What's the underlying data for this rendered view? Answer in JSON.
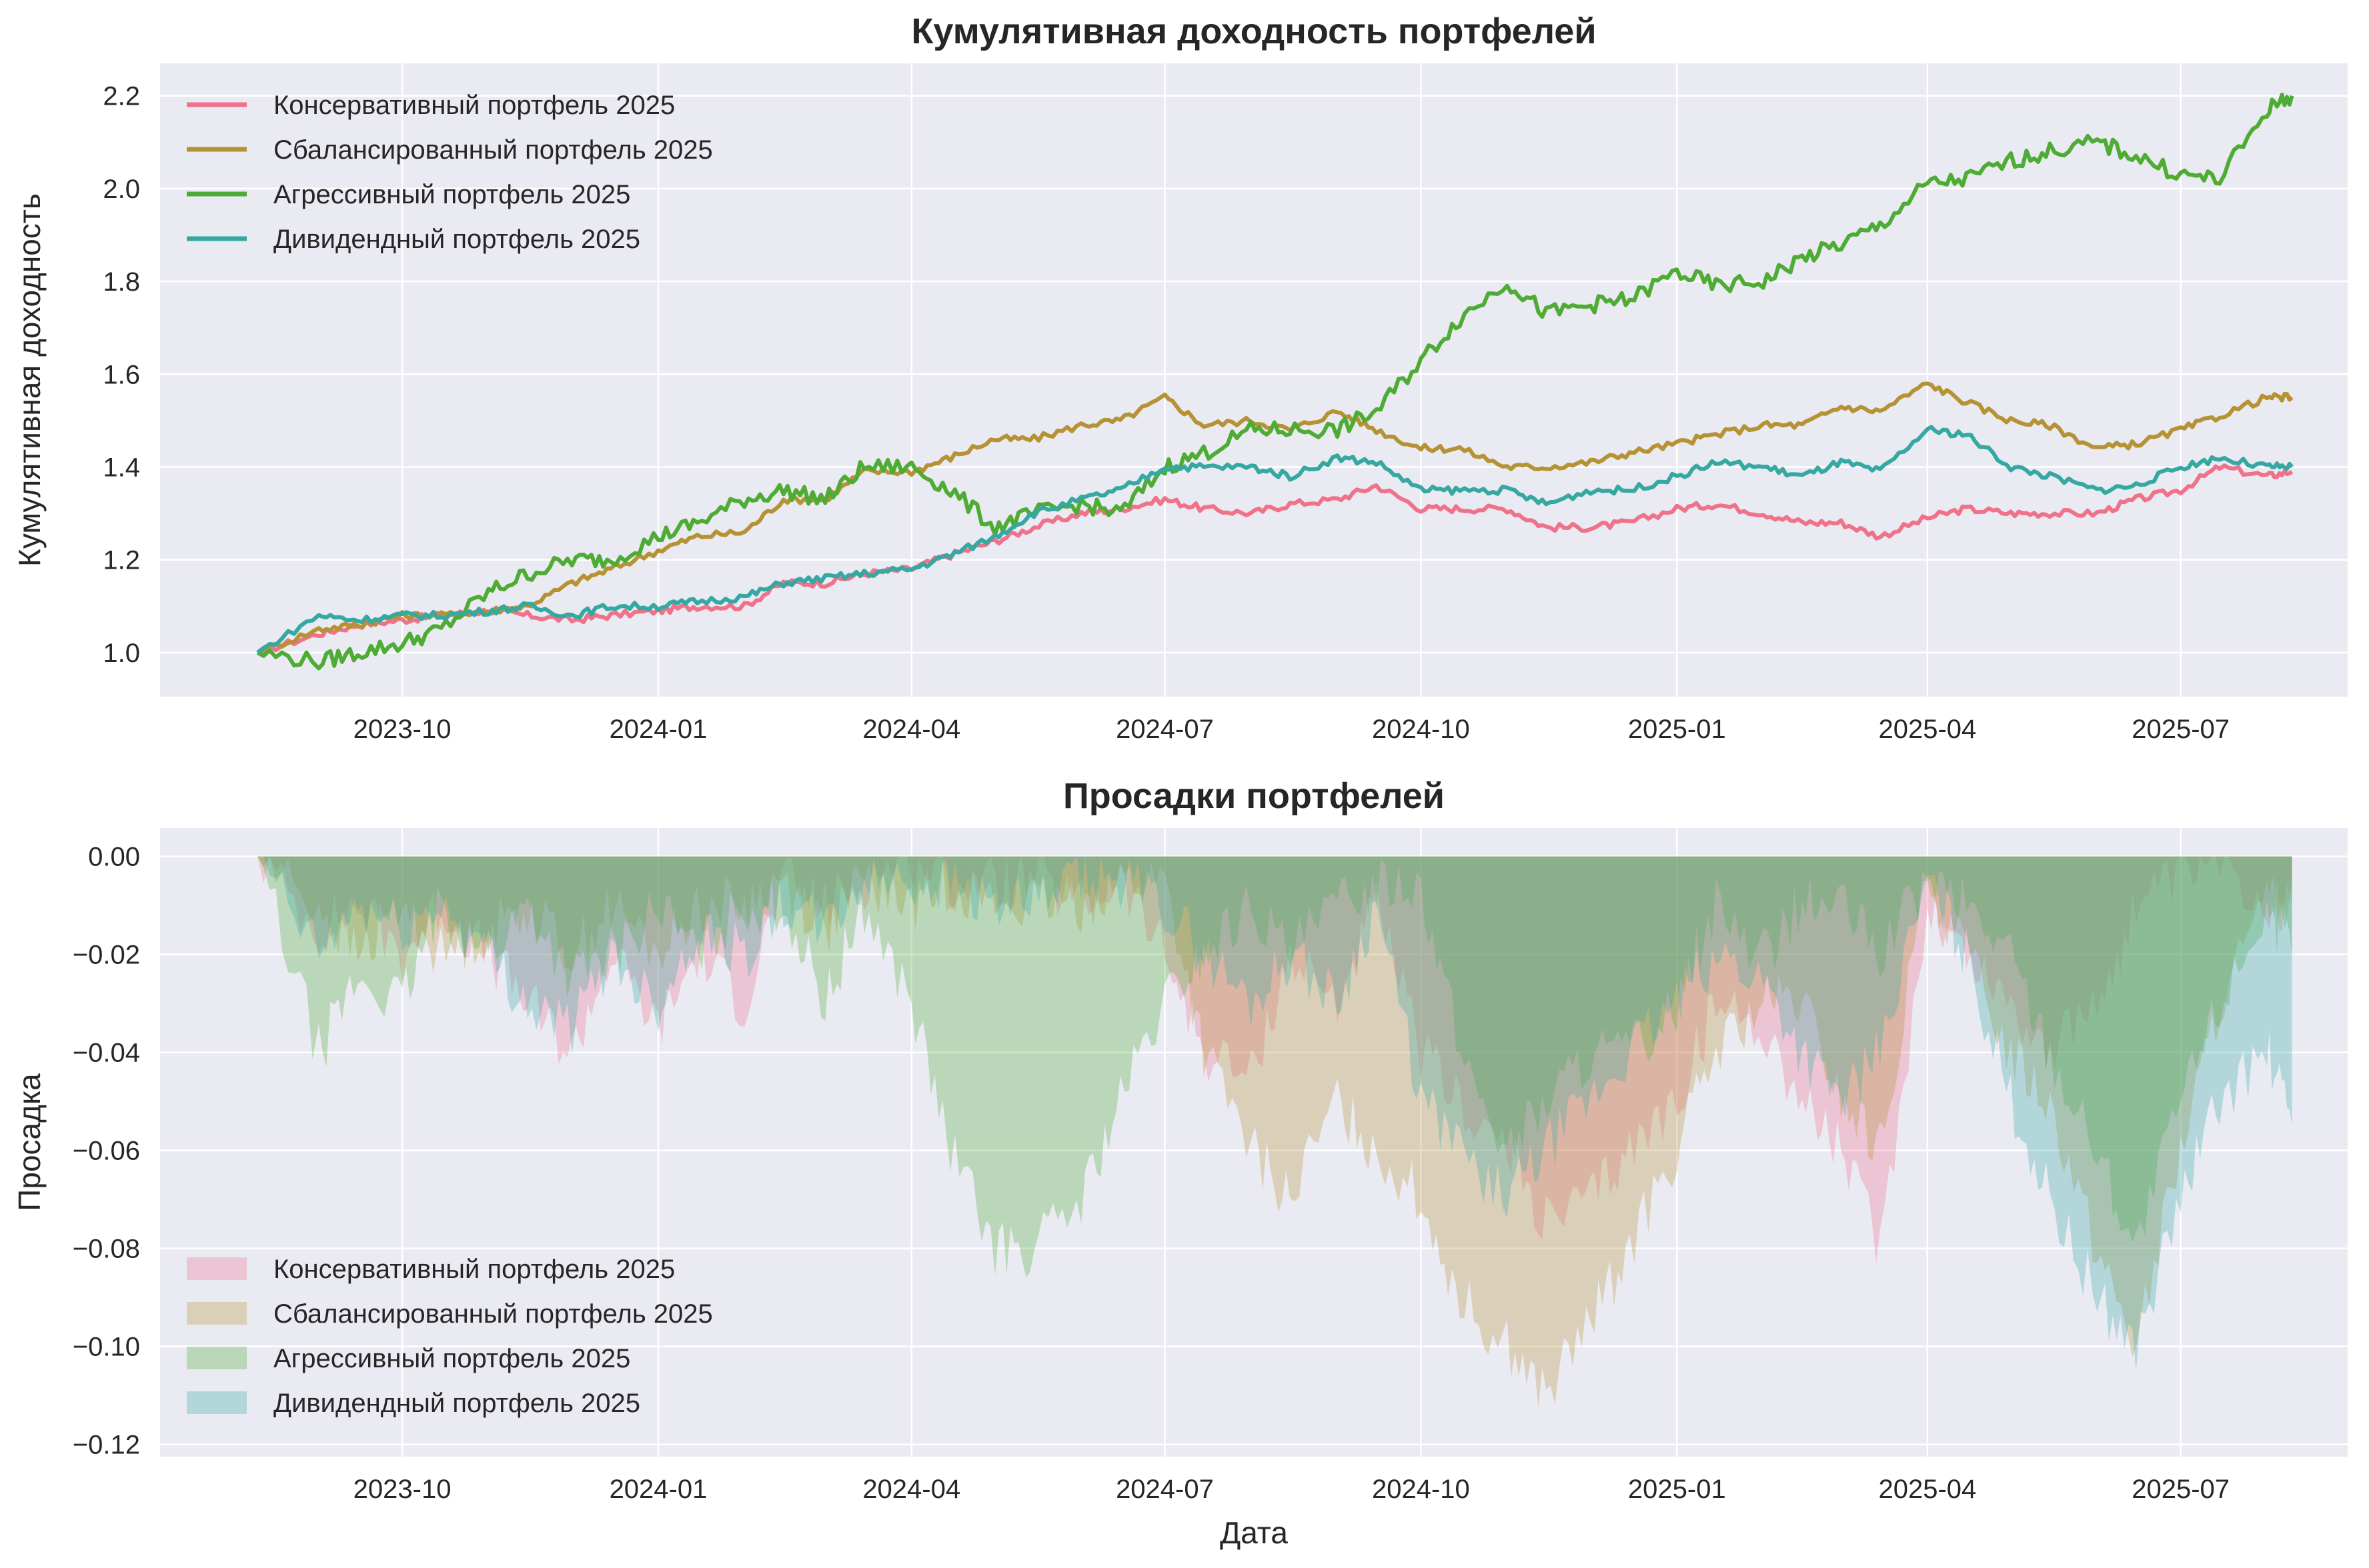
{
  "chart_data": [
    {
      "type": "line",
      "title": "Кумулятивная доходность портфелей",
      "xlabel": "",
      "ylabel": "Кумулятивная доходность",
      "x_ticks": [
        "2023-10",
        "2024-01",
        "2024-04",
        "2024-07",
        "2024-10",
        "2025-01",
        "2025-04",
        "2025-07"
      ],
      "y_ticks": [
        "1.0",
        "1.2",
        "1.4",
        "1.6",
        "1.8",
        "2.0",
        "2.2"
      ],
      "xlim": [
        "2023-07-06",
        "2025-08-30"
      ],
      "ylim": [
        0.905,
        2.27
      ],
      "grid": true,
      "legend": "top-left",
      "x": [
        "2023-08-10",
        "2023-09-01",
        "2023-09-15",
        "2023-10-01",
        "2023-10-15",
        "2023-11-01",
        "2023-11-15",
        "2023-12-01",
        "2023-12-15",
        "2024-01-01",
        "2024-01-15",
        "2024-02-01",
        "2024-02-15",
        "2024-03-01",
        "2024-03-15",
        "2024-04-01",
        "2024-04-15",
        "2024-05-01",
        "2024-05-15",
        "2024-06-01",
        "2024-06-15",
        "2024-07-01",
        "2024-07-15",
        "2024-08-01",
        "2024-08-15",
        "2024-09-01",
        "2024-09-15",
        "2024-10-01",
        "2024-10-15",
        "2024-11-01",
        "2024-11-15",
        "2024-12-01",
        "2024-12-15",
        "2025-01-01",
        "2025-01-15",
        "2025-02-01",
        "2025-02-15",
        "2025-03-01",
        "2025-03-15",
        "2025-04-01",
        "2025-04-15",
        "2025-05-01",
        "2025-05-15",
        "2025-06-01",
        "2025-06-15",
        "2025-07-01",
        "2025-07-15",
        "2025-08-01",
        "2025-08-10"
      ],
      "series": [
        {
          "name": "Консервативный портфель 2025",
          "color": "#f0718a",
          "values": [
            1.0,
            1.04,
            1.06,
            1.07,
            1.08,
            1.09,
            1.08,
            1.07,
            1.08,
            1.09,
            1.1,
            1.1,
            1.15,
            1.15,
            1.17,
            1.18,
            1.21,
            1.24,
            1.27,
            1.3,
            1.31,
            1.33,
            1.31,
            1.3,
            1.32,
            1.33,
            1.36,
            1.31,
            1.31,
            1.31,
            1.27,
            1.27,
            1.28,
            1.31,
            1.32,
            1.3,
            1.28,
            1.28,
            1.25,
            1.29,
            1.31,
            1.3,
            1.3,
            1.3,
            1.33,
            1.35,
            1.4,
            1.38,
            1.39
          ]
        },
        {
          "name": "Сбалансированный портфель 2025",
          "color": "#b59234",
          "values": [
            1.0,
            1.05,
            1.06,
            1.08,
            1.08,
            1.09,
            1.1,
            1.15,
            1.18,
            1.22,
            1.25,
            1.26,
            1.33,
            1.33,
            1.39,
            1.39,
            1.42,
            1.46,
            1.46,
            1.49,
            1.5,
            1.55,
            1.49,
            1.5,
            1.48,
            1.52,
            1.48,
            1.44,
            1.44,
            1.4,
            1.4,
            1.41,
            1.43,
            1.45,
            1.47,
            1.49,
            1.49,
            1.53,
            1.52,
            1.58,
            1.54,
            1.5,
            1.49,
            1.44,
            1.45,
            1.48,
            1.51,
            1.55,
            1.55
          ]
        },
        {
          "name": "Агрессивный портфель 2025",
          "color": "#4eac35",
          "values": [
            1.0,
            0.98,
            1.0,
            1.02,
            1.05,
            1.13,
            1.17,
            1.2,
            1.2,
            1.25,
            1.28,
            1.33,
            1.35,
            1.33,
            1.4,
            1.4,
            1.35,
            1.27,
            1.3,
            1.32,
            1.3,
            1.4,
            1.43,
            1.48,
            1.48,
            1.48,
            1.52,
            1.63,
            1.72,
            1.8,
            1.73,
            1.75,
            1.76,
            1.82,
            1.79,
            1.8,
            1.85,
            1.88,
            1.92,
            2.01,
            2.02,
            2.06,
            2.08,
            2.1,
            2.07,
            2.03,
            2.02,
            2.17,
            2.2
          ]
        },
        {
          "name": "Дивидендный портфель 2025",
          "color": "#35a8a1",
          "values": [
            1.0,
            1.08,
            1.07,
            1.08,
            1.08,
            1.09,
            1.1,
            1.08,
            1.1,
            1.1,
            1.11,
            1.12,
            1.15,
            1.16,
            1.17,
            1.18,
            1.21,
            1.25,
            1.3,
            1.33,
            1.35,
            1.4,
            1.4,
            1.4,
            1.38,
            1.42,
            1.41,
            1.35,
            1.35,
            1.35,
            1.32,
            1.35,
            1.35,
            1.38,
            1.41,
            1.4,
            1.38,
            1.41,
            1.39,
            1.48,
            1.47,
            1.4,
            1.38,
            1.35,
            1.36,
            1.4,
            1.42,
            1.4,
            1.4
          ]
        }
      ]
    },
    {
      "type": "area",
      "title": "Просадки портфелей",
      "xlabel": "Дата",
      "ylabel": "Просадка",
      "x_ticks": [
        "2023-10",
        "2024-01",
        "2024-04",
        "2024-07",
        "2024-10",
        "2025-01",
        "2025-04",
        "2025-07"
      ],
      "y_ticks": [
        "0.00",
        "−0.02",
        "−0.04",
        "−0.06",
        "−0.08",
        "−0.10",
        "−0.12"
      ],
      "xlim": [
        "2023-07-06",
        "2025-08-30"
      ],
      "ylim": [
        -0.1225,
        0.0058
      ],
      "grid": true,
      "legend": "bottom-left",
      "x": [
        "2023-08-10",
        "2023-09-01",
        "2023-09-15",
        "2023-10-01",
        "2023-10-15",
        "2023-11-01",
        "2023-11-15",
        "2023-12-01",
        "2023-12-15",
        "2024-01-01",
        "2024-01-15",
        "2024-02-01",
        "2024-02-15",
        "2024-03-01",
        "2024-03-15",
        "2024-04-01",
        "2024-04-15",
        "2024-05-01",
        "2024-05-15",
        "2024-06-01",
        "2024-06-15",
        "2024-07-01",
        "2024-07-15",
        "2024-08-01",
        "2024-08-15",
        "2024-09-01",
        "2024-09-15",
        "2024-10-01",
        "2024-10-15",
        "2024-11-01",
        "2024-11-15",
        "2024-12-01",
        "2024-12-15",
        "2025-01-01",
        "2025-01-15",
        "2025-02-01",
        "2025-02-15",
        "2025-03-01",
        "2025-03-15",
        "2025-04-01",
        "2025-04-15",
        "2025-05-01",
        "2025-05-15",
        "2025-06-01",
        "2025-06-15",
        "2025-07-01",
        "2025-07-15",
        "2025-08-01",
        "2025-08-10"
      ],
      "series": [
        {
          "name": "Консервативный портфель 2025",
          "color": "#f0718a",
          "values": [
            0,
            -0.015,
            -0.01,
            -0.02,
            -0.01,
            -0.02,
            -0.03,
            -0.04,
            -0.02,
            -0.035,
            -0.02,
            -0.03,
            -0.005,
            -0.01,
            -0.005,
            0,
            -0.005,
            -0.005,
            -0.005,
            -0.01,
            -0.005,
            -0.02,
            -0.04,
            -0.045,
            -0.02,
            -0.03,
            -0.01,
            -0.04,
            -0.05,
            -0.06,
            -0.075,
            -0.07,
            -0.06,
            -0.05,
            -0.03,
            -0.035,
            -0.05,
            -0.06,
            -0.08,
            -0.01,
            -0.02,
            -0.03,
            -0.04,
            -0.03,
            -0.01,
            -0.005,
            0,
            -0.01,
            -0.005
          ]
        },
        {
          "name": "Сбалансированный портфель 2025",
          "color": "#b59234",
          "values": [
            0,
            -0.01,
            -0.02,
            -0.01,
            -0.02,
            -0.015,
            -0.01,
            -0.02,
            -0.01,
            -0.02,
            -0.01,
            -0.01,
            -0.005,
            -0.015,
            -0.005,
            -0.01,
            -0.005,
            -0.01,
            -0.01,
            -0.01,
            -0.005,
            -0.005,
            -0.04,
            -0.06,
            -0.07,
            -0.05,
            -0.06,
            -0.07,
            -0.09,
            -0.1,
            -0.11,
            -0.095,
            -0.08,
            -0.06,
            -0.04,
            -0.03,
            -0.03,
            -0.05,
            -0.06,
            -0.005,
            -0.02,
            -0.04,
            -0.05,
            -0.08,
            -0.1,
            -0.06,
            -0.03,
            -0.01,
            -0.01
          ]
        },
        {
          "name": "Агрессивный портфель 2025",
          "color": "#4eac35",
          "values": [
            0,
            -0.04,
            -0.025,
            -0.03,
            -0.01,
            -0.02,
            -0.01,
            -0.025,
            -0.02,
            -0.01,
            -0.02,
            -0.01,
            -0.01,
            -0.03,
            -0.01,
            -0.03,
            -0.06,
            -0.08,
            -0.08,
            -0.07,
            -0.05,
            -0.03,
            -0.02,
            -0.01,
            -0.02,
            -0.01,
            -0.005,
            -0.005,
            -0.04,
            -0.06,
            -0.05,
            -0.04,
            -0.04,
            -0.03,
            -0.01,
            -0.02,
            -0.01,
            -0.01,
            -0.02,
            -0.005,
            -0.01,
            -0.02,
            -0.04,
            -0.06,
            -0.08,
            -0.05,
            -0.03,
            -0.01,
            -0.02
          ]
        },
        {
          "name": "Дивидендный портфель 2025",
          "color": "#35a8a1",
          "values": [
            0,
            -0.02,
            -0.01,
            -0.015,
            -0.01,
            -0.02,
            -0.03,
            -0.035,
            -0.02,
            -0.03,
            -0.015,
            -0.02,
            -0.01,
            -0.015,
            -0.005,
            -0.005,
            -0.005,
            -0.01,
            -0.01,
            -0.005,
            -0.005,
            -0.01,
            -0.02,
            -0.03,
            -0.02,
            -0.03,
            -0.01,
            -0.05,
            -0.06,
            -0.07,
            -0.06,
            -0.05,
            -0.04,
            -0.03,
            -0.02,
            -0.025,
            -0.04,
            -0.05,
            -0.04,
            -0.005,
            -0.02,
            -0.05,
            -0.07,
            -0.09,
            -0.1,
            -0.07,
            -0.05,
            -0.04,
            -0.055
          ]
        }
      ]
    }
  ]
}
